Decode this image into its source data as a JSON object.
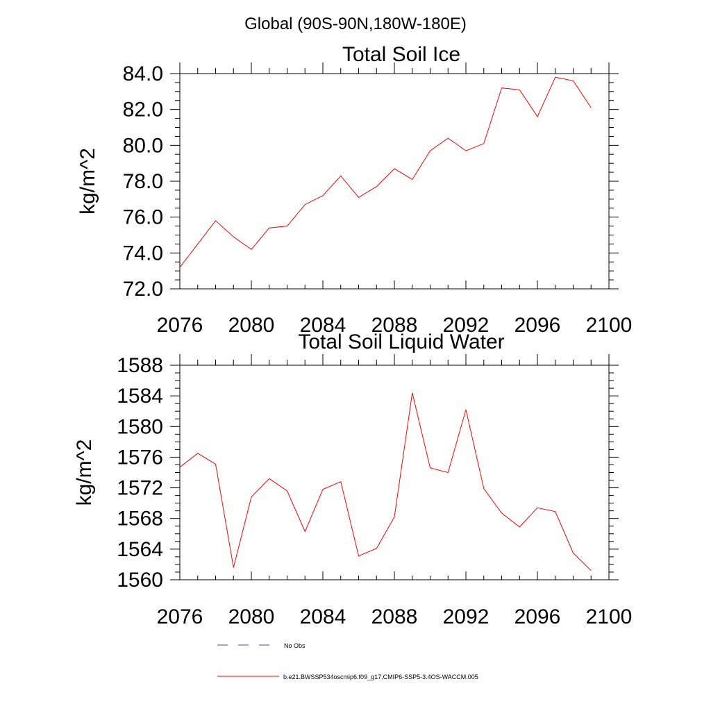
{
  "figure_title": "Global (90S-90N,180W-180E)",
  "chart_data": [
    {
      "type": "line",
      "title": "Total Soil Ice",
      "xlabel": "",
      "ylabel": "kg/m^2",
      "xlim": [
        2076,
        2100
      ],
      "ylim": [
        72,
        84
      ],
      "xticks": [
        "2076",
        "2080",
        "2084",
        "2088",
        "2092",
        "2096",
        "2100"
      ],
      "yticks": [
        "72.0",
        "74.0",
        "76.0",
        "78.0",
        "80.0",
        "82.0",
        "84.0"
      ],
      "series": [
        {
          "name": "b.e21.BWSSP534oscmip6.f09_g17.CMIP6-SSP5-3.4OS-WACCM.005",
          "color": "#ff0000",
          "x": [
            2076,
            2077,
            2078,
            2079,
            2080,
            2081,
            2082,
            2083,
            2084,
            2085,
            2086,
            2087,
            2088,
            2089,
            2090,
            2091,
            2092,
            2093,
            2094,
            2095,
            2096,
            2097,
            2098,
            2099
          ],
          "y": [
            73.2,
            74.5,
            75.8,
            74.9,
            74.2,
            75.4,
            75.5,
            76.7,
            77.2,
            78.3,
            77.1,
            77.7,
            78.7,
            78.1,
            79.7,
            80.4,
            79.7,
            80.1,
            83.2,
            83.1,
            81.6,
            83.8,
            83.6,
            82.1
          ]
        }
      ]
    },
    {
      "type": "line",
      "title": "Total Soil Liquid Water",
      "xlabel": "",
      "ylabel": "kg/m^2",
      "xlim": [
        2076,
        2100
      ],
      "ylim": [
        1560,
        1588
      ],
      "xticks": [
        "2076",
        "2080",
        "2084",
        "2088",
        "2092",
        "2096",
        "2100"
      ],
      "yticks": [
        "1560",
        "1564",
        "1568",
        "1572",
        "1576",
        "1580",
        "1584",
        "1588"
      ],
      "series": [
        {
          "name": "b.e21.BWSSP534oscmip6.f09_g17.CMIP6-SSP5-3.4OS-WACCM.005",
          "color": "#ff0000",
          "x": [
            2076,
            2077,
            2078,
            2079,
            2080,
            2081,
            2082,
            2083,
            2084,
            2085,
            2086,
            2087,
            2088,
            2089,
            2090,
            2091,
            2092,
            2093,
            2094,
            2095,
            2096,
            2097,
            2098,
            2099
          ],
          "y": [
            1574.7,
            1576.5,
            1575.1,
            1561.6,
            1570.8,
            1573.2,
            1571.6,
            1566.3,
            1571.8,
            1572.8,
            1563.1,
            1564.1,
            1568.2,
            1584.4,
            1574.6,
            1574.0,
            1582.2,
            1571.9,
            1568.7,
            1566.9,
            1569.4,
            1568.9,
            1563.5,
            1561.2
          ]
        }
      ]
    }
  ],
  "legend": [
    {
      "label": "No Obs",
      "color": "#4b4b96",
      "style": "dashed"
    },
    {
      "label": "b.e21.BWSSP534oscmip6.f09_g17.CMIP6-SSP5-3.4OS-WACCM.005",
      "color": "#ff0000",
      "style": "solid"
    }
  ]
}
